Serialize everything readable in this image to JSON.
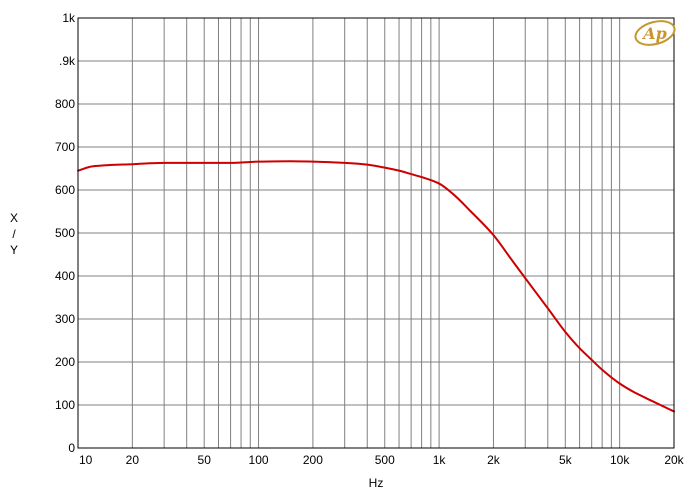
{
  "chart_data": {
    "type": "line",
    "title": "",
    "xlabel": "Hz",
    "ylabel": [
      "X",
      "/",
      "Y"
    ],
    "x_scale": "log",
    "xlim": [
      10,
      20000
    ],
    "ylim": [
      0,
      1000
    ],
    "grid": true,
    "x_ticks": [
      {
        "value": 10,
        "label": "10"
      },
      {
        "value": 20,
        "label": "20"
      },
      {
        "value": 50,
        "label": "50"
      },
      {
        "value": 100,
        "label": "100"
      },
      {
        "value": 200,
        "label": "200"
      },
      {
        "value": 500,
        "label": "500"
      },
      {
        "value": 1000,
        "label": "1k"
      },
      {
        "value": 2000,
        "label": "2k"
      },
      {
        "value": 5000,
        "label": "5k"
      },
      {
        "value": 10000,
        "label": "10k"
      },
      {
        "value": 20000,
        "label": "20k"
      }
    ],
    "y_ticks": [
      {
        "value": 0,
        "label": "0"
      },
      {
        "value": 100,
        "label": "100"
      },
      {
        "value": 200,
        "label": "200"
      },
      {
        "value": 300,
        "label": "300"
      },
      {
        "value": 400,
        "label": "400"
      },
      {
        "value": 500,
        "label": "500"
      },
      {
        "value": 600,
        "label": "600"
      },
      {
        "value": 700,
        "label": "700"
      },
      {
        "value": 800,
        "label": "800"
      },
      {
        "value": 900,
        "label": ".9k"
      },
      {
        "value": 1000,
        "label": "1k"
      }
    ],
    "series": [
      {
        "color": "#cc0000",
        "x": [
          10,
          12,
          15,
          20,
          30,
          50,
          70,
          100,
          150,
          200,
          300,
          400,
          500,
          600,
          700,
          800,
          1000,
          1200,
          1500,
          2000,
          2500,
          3000,
          4000,
          5000,
          6000,
          7000,
          8000,
          10000,
          12000,
          15000,
          20000
        ],
        "y": [
          645,
          655,
          658,
          660,
          663,
          663,
          663,
          666,
          667,
          666,
          663,
          659,
          652,
          645,
          637,
          630,
          615,
          590,
          550,
          495,
          440,
          395,
          325,
          270,
          232,
          205,
          182,
          150,
          130,
          110,
          85
        ]
      }
    ]
  },
  "logo": {
    "text": "Ap",
    "color": "#c8962e"
  }
}
